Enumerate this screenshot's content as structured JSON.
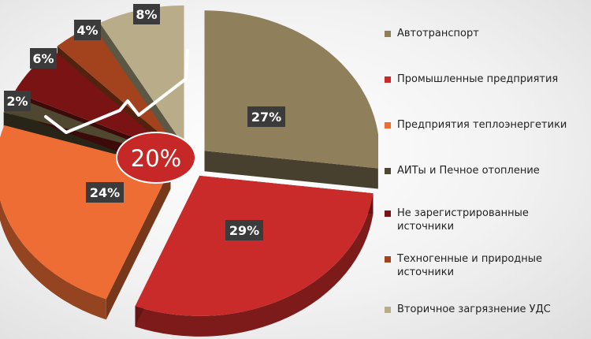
{
  "chart_data": {
    "type": "pie",
    "title": "",
    "slices": [
      {
        "name": "Автотранспорт",
        "value": 27,
        "label": "27%",
        "color": "#8f805b"
      },
      {
        "name": "Промышленные предприятия",
        "value": 29,
        "label": "29%",
        "color": "#c92a2a"
      },
      {
        "name": "Предприятия теплоэнергетики",
        "value": 24,
        "label": "24%",
        "color": "#ee6d34"
      },
      {
        "name": "АИТы и Печное отопление",
        "value": 2,
        "label": "2%",
        "color": "#4f4730"
      },
      {
        "name": "Не зарегистрированные источники",
        "value": 6,
        "label": "6%",
        "color": "#7a1414"
      },
      {
        "name": "Техногенные и природные источники",
        "value": 4,
        "label": "4%",
        "color": "#a3431e"
      },
      {
        "name": "Вторичное загрязнение УДС",
        "value": 8,
        "label": "8%",
        "color": "#b8ad88"
      }
    ],
    "annotation": {
      "text": "20%",
      "color": "#c62828"
    },
    "legend_position": "right"
  },
  "legend": {
    "items": [
      {
        "label": "Автотранспорт",
        "color": "#8f805b"
      },
      {
        "label": "Промышленные предприятия",
        "color": "#c92a2a"
      },
      {
        "label": "Предприятия теплоэнергетики",
        "color": "#ee6d34"
      },
      {
        "label": "АИТы и Печное отопление",
        "color": "#4f4730"
      },
      {
        "label": "Не зарегистрированные\nисточники",
        "color": "#7a1414"
      },
      {
        "label": "Техногенные и природные\nисточники",
        "color": "#a3431e"
      },
      {
        "label": "Вторичное загрязнение УДС",
        "color": "#b8ad88"
      }
    ]
  }
}
